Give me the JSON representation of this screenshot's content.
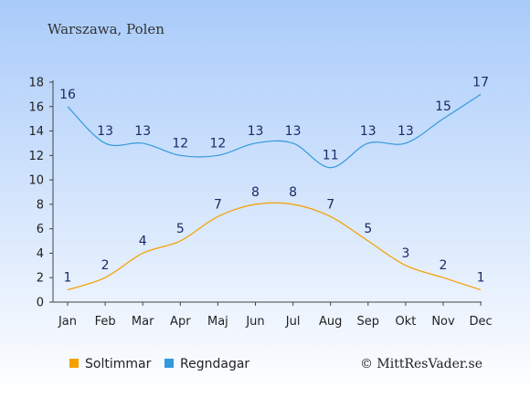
{
  "chart_data": {
    "type": "line",
    "title": "Warszawa, Polen",
    "categories": [
      "Jan",
      "Feb",
      "Mar",
      "Apr",
      "Maj",
      "Jun",
      "Jul",
      "Aug",
      "Sep",
      "Okt",
      "Nov",
      "Dec"
    ],
    "series": [
      {
        "name": "Soltimmar",
        "color": "#f5a000",
        "values": [
          1,
          2,
          4,
          5,
          7,
          8,
          8,
          7,
          5,
          3,
          2,
          1
        ]
      },
      {
        "name": "Regndagar",
        "color": "#3399dd",
        "values": [
          16,
          13,
          13,
          12,
          12,
          13,
          13,
          11,
          13,
          13,
          15,
          17
        ]
      }
    ],
    "y_ticks": [
      0,
      2,
      4,
      6,
      8,
      10,
      12,
      14,
      16,
      18
    ],
    "ylim": [
      0,
      18
    ],
    "grid": false,
    "legend_placement": "bottom-left",
    "credit": "© MittResVader.se",
    "background_gradient": [
      "#a9cbfa",
      "#ffffff"
    ]
  }
}
